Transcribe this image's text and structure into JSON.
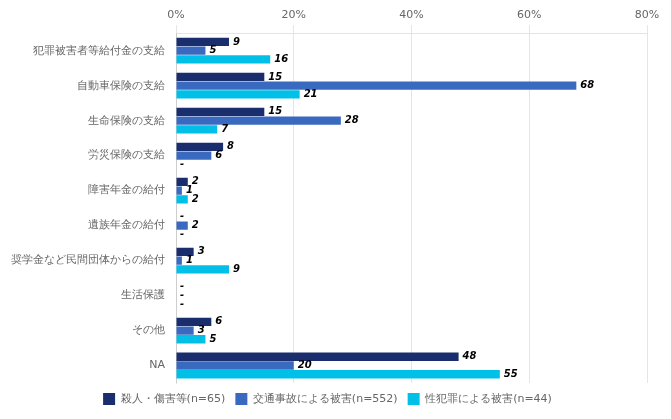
{
  "chart_data": {
    "type": "bar",
    "orientation": "horizontal",
    "categories": [
      "犯罪被害者等給付金の支給",
      "自動車保険の支給",
      "生命保険の支給",
      "労災保険の支給",
      "障害年金の給付",
      "遺族年金の給付",
      "奨学金など民間団体からの給付",
      "生活保護",
      "その他",
      "NA"
    ],
    "series": [
      {
        "name": "殺人・傷害等(n=65)",
        "color": "#1a2e6e",
        "values": [
          9,
          15,
          15,
          8,
          2,
          0,
          3,
          0,
          6,
          48
        ],
        "value_labels": [
          "9",
          "15",
          "15",
          "8",
          "2",
          "-",
          "3",
          "-",
          "6",
          "48"
        ]
      },
      {
        "name": "交通事故による被害(n=552)",
        "color": "#3a6abf",
        "values": [
          5,
          68,
          28,
          6,
          1,
          2,
          1,
          0,
          3,
          20
        ],
        "value_labels": [
          "5",
          "68",
          "28",
          "6",
          "1",
          "2",
          "1",
          "-",
          "3",
          "20"
        ]
      },
      {
        "name": "性犯罪による被害(n=44)",
        "color": "#00c0e8",
        "values": [
          16,
          21,
          7,
          0,
          2,
          0,
          9,
          0,
          5,
          55
        ],
        "value_labels": [
          "16",
          "21",
          "7",
          "-",
          "2",
          "-",
          "9",
          "-",
          "5",
          "55"
        ]
      }
    ],
    "xlim": [
      0,
      80
    ],
    "xticks": [
      {
        "value": 0,
        "label": "0%"
      },
      {
        "value": 20,
        "label": "20%"
      },
      {
        "value": 40,
        "label": "40%"
      },
      {
        "value": 60,
        "label": "60%"
      },
      {
        "value": 80,
        "label": "80%"
      }
    ],
    "grid": true,
    "legend": "bottom",
    "data_labels": true
  }
}
